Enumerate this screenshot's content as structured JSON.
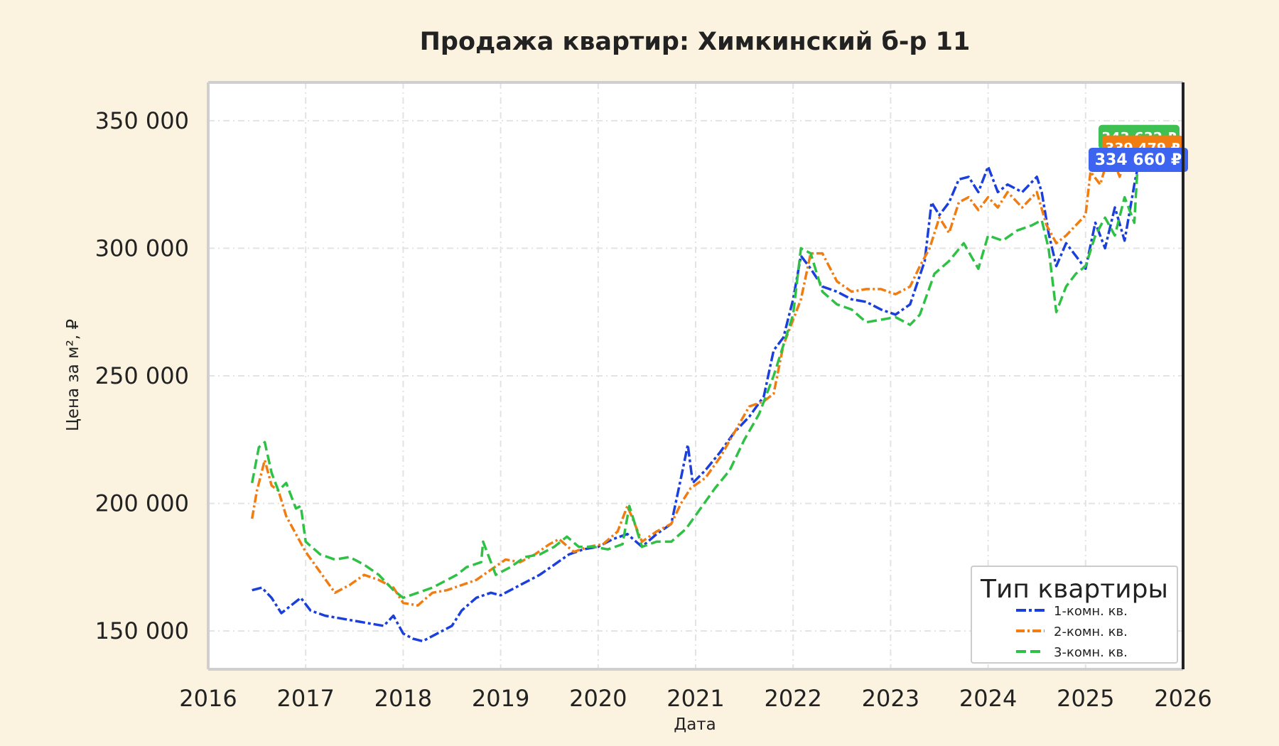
{
  "chart_data": {
    "type": "line",
    "title": "Продажа квартир: Химкинский б-р 11",
    "xlabel": "Дата",
    "ylabel": "Цена за м², ₽",
    "xlim": [
      2016.0,
      2026.0
    ],
    "ylim": [
      135000,
      365000
    ],
    "x_ticks": [
      "2016",
      "2017",
      "2018",
      "2019",
      "2020",
      "2021",
      "2022",
      "2023",
      "2024",
      "2025",
      "2026"
    ],
    "y_ticks": [
      "150 000",
      "200 000",
      "250 000",
      "300 000",
      "350 000"
    ],
    "grid": true,
    "legend": {
      "title": "Тип квартиры",
      "placement": "lower-right"
    },
    "colors": {
      "1": "#1a3fdc",
      "2": "#f07c12",
      "3": "#2fc145"
    },
    "series": [
      {
        "name": "1-комн. кв.",
        "color": "#1a3fdc",
        "x": [
          2016.45,
          2016.55,
          2016.65,
          2016.75,
          2016.85,
          2016.95,
          2017.05,
          2017.2,
          2017.35,
          2017.5,
          2017.65,
          2017.8,
          2017.9,
          2018.0,
          2018.1,
          2018.2,
          2018.35,
          2018.5,
          2018.6,
          2018.75,
          2018.9,
          2019.0,
          2019.2,
          2019.4,
          2019.55,
          2019.7,
          2019.85,
          2020.0,
          2020.15,
          2020.3,
          2020.45,
          2020.6,
          2020.75,
          2020.85,
          2020.92,
          2020.97,
          2021.1,
          2021.25,
          2021.4,
          2021.55,
          2021.7,
          2021.8,
          2021.9,
          2022.0,
          2022.08,
          2022.18,
          2022.3,
          2022.45,
          2022.6,
          2022.75,
          2022.9,
          2023.05,
          2023.2,
          2023.35,
          2023.42,
          2023.5,
          2023.6,
          2023.7,
          2023.8,
          2023.9,
          2024.0,
          2024.1,
          2024.2,
          2024.35,
          2024.5,
          2024.55,
          2024.62,
          2024.7,
          2024.8,
          2024.9,
          2025.0,
          2025.1,
          2025.2,
          2025.3,
          2025.4,
          2025.5,
          2025.55
        ],
        "values": [
          166000,
          167000,
          163000,
          157000,
          160000,
          163000,
          158000,
          156000,
          155000,
          154000,
          153000,
          152000,
          156000,
          149000,
          147000,
          146000,
          149000,
          152000,
          158000,
          163000,
          165000,
          164000,
          168000,
          172000,
          176000,
          180000,
          182000,
          183000,
          186000,
          188000,
          183000,
          188000,
          192000,
          210000,
          223000,
          208000,
          213000,
          220000,
          228000,
          234000,
          242000,
          260000,
          265000,
          280000,
          297000,
          292000,
          285000,
          283000,
          280000,
          279000,
          276000,
          274000,
          278000,
          295000,
          318000,
          313000,
          318000,
          327000,
          328000,
          322000,
          332000,
          322000,
          325000,
          322000,
          328000,
          322000,
          306000,
          293000,
          302000,
          297000,
          292000,
          310000,
          300000,
          316000,
          303000,
          325000,
          334660
        ]
      },
      {
        "name": "2-комн. кв.",
        "color": "#f07c12",
        "x": [
          2016.45,
          2016.5,
          2016.58,
          2016.65,
          2016.72,
          2016.8,
          2016.9,
          2017.0,
          2017.15,
          2017.3,
          2017.45,
          2017.6,
          2017.75,
          2017.9,
          2018.0,
          2018.15,
          2018.3,
          2018.45,
          2018.6,
          2018.75,
          2018.9,
          2019.05,
          2019.2,
          2019.35,
          2019.5,
          2019.6,
          2019.75,
          2019.9,
          2020.05,
          2020.2,
          2020.3,
          2020.45,
          2020.6,
          2020.75,
          2020.85,
          2020.95,
          2021.1,
          2021.25,
          2021.4,
          2021.55,
          2021.7,
          2021.8,
          2021.9,
          2022.0,
          2022.08,
          2022.18,
          2022.3,
          2022.45,
          2022.6,
          2022.75,
          2022.9,
          2023.05,
          2023.2,
          2023.3,
          2023.4,
          2023.5,
          2023.6,
          2023.7,
          2023.8,
          2023.9,
          2024.0,
          2024.1,
          2024.2,
          2024.35,
          2024.5,
          2024.6,
          2024.7,
          2024.8,
          2024.9,
          2025.0,
          2025.05,
          2025.15,
          2025.25,
          2025.35,
          2025.45,
          2025.5,
          2025.55
        ],
        "values": [
          194000,
          205000,
          217000,
          207000,
          205000,
          195000,
          188000,
          181000,
          173000,
          165000,
          168000,
          172000,
          170000,
          167000,
          161000,
          160000,
          165000,
          166000,
          168000,
          170000,
          174000,
          178000,
          177000,
          180000,
          184000,
          186000,
          181000,
          183000,
          184000,
          189000,
          199000,
          185000,
          189000,
          192000,
          200000,
          206000,
          210000,
          218000,
          228000,
          238000,
          240000,
          243000,
          262000,
          272000,
          280000,
          298000,
          298000,
          287000,
          283000,
          284000,
          284000,
          282000,
          285000,
          293000,
          300000,
          312000,
          306000,
          318000,
          320000,
          315000,
          320000,
          316000,
          322000,
          316000,
          322000,
          309000,
          302000,
          305000,
          309000,
          313000,
          330000,
          325000,
          338000,
          328000,
          340000,
          345000,
          339479
        ]
      },
      {
        "name": "3-комн. кв.",
        "color": "#2fc145",
        "x": [
          2016.45,
          2016.52,
          2016.58,
          2016.65,
          2016.72,
          2016.8,
          2016.9,
          2016.95,
          2017.0,
          2017.15,
          2017.3,
          2017.45,
          2017.6,
          2017.75,
          2017.9,
          2018.0,
          2018.15,
          2018.3,
          2018.45,
          2018.55,
          2018.65,
          2018.8,
          2018.82,
          2018.95,
          2019.1,
          2019.25,
          2019.4,
          2019.55,
          2019.68,
          2019.8,
          2019.95,
          2020.1,
          2020.25,
          2020.32,
          2020.45,
          2020.6,
          2020.75,
          2020.9,
          2021.05,
          2021.2,
          2021.35,
          2021.5,
          2021.65,
          2021.8,
          2021.9,
          2022.0,
          2022.08,
          2022.18,
          2022.3,
          2022.45,
          2022.6,
          2022.75,
          2022.9,
          2023.05,
          2023.2,
          2023.3,
          2023.45,
          2023.6,
          2023.75,
          2023.9,
          2024.0,
          2024.15,
          2024.3,
          2024.45,
          2024.55,
          2024.62,
          2024.7,
          2024.8,
          2024.9,
          2025.0,
          2025.1,
          2025.2,
          2025.3,
          2025.4,
          2025.5,
          2025.55
        ],
        "values": [
          208000,
          222000,
          224000,
          212000,
          205000,
          208000,
          198000,
          199000,
          185000,
          180000,
          178000,
          179000,
          176000,
          172000,
          166000,
          163000,
          165000,
          167000,
          170000,
          172000,
          175000,
          177000,
          185000,
          172000,
          175000,
          179000,
          180000,
          183000,
          187000,
          183000,
          183000,
          182000,
          184000,
          199000,
          183000,
          185000,
          185000,
          190000,
          198000,
          206000,
          213000,
          225000,
          235000,
          250000,
          262000,
          274000,
          300000,
          298000,
          283000,
          278000,
          276000,
          271000,
          272000,
          273000,
          270000,
          274000,
          290000,
          295000,
          302000,
          292000,
          305000,
          303000,
          307000,
          309000,
          311000,
          300000,
          275000,
          285000,
          290000,
          293000,
          305000,
          312000,
          305000,
          320000,
          310000,
          343632
        ]
      }
    ],
    "end_labels": [
      {
        "text": "343 632 ₽",
        "value": 343632,
        "color": "#3fc052"
      },
      {
        "text": "339 479 ₽",
        "value": 339479,
        "color": "#f07c12"
      },
      {
        "text": "334 660 ₽",
        "value": 334660,
        "color": "#3d64f0"
      }
    ]
  }
}
